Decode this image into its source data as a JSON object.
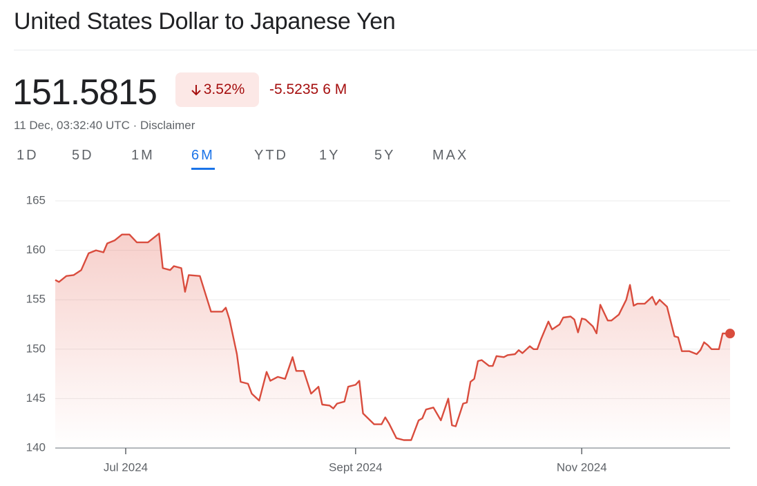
{
  "header": {
    "title": "United States Dollar to Japanese Yen",
    "price": "151.5815",
    "change_percent": "3.52%",
    "change_value": "-5.5235",
    "period": "6 M",
    "timestamp": "11 Dec, 03:32:40 UTC",
    "separator": "·",
    "disclaimer": "Disclaimer"
  },
  "tabs": {
    "items": [
      "1D",
      "5D",
      "1M",
      "6M",
      "YTD",
      "1Y",
      "5Y",
      "MAX"
    ],
    "selected": 3
  },
  "chart_data": {
    "type": "line",
    "x": [
      0,
      1,
      3,
      5,
      7,
      9,
      11,
      13,
      14,
      16,
      18,
      20,
      22,
      25,
      28,
      29,
      31,
      32,
      34,
      35,
      36,
      39,
      41,
      42,
      45,
      46,
      47,
      49,
      50,
      52,
      53,
      55,
      57,
      58,
      60,
      62,
      64,
      65,
      67,
      69,
      71,
      72,
      74,
      75,
      76,
      78,
      79,
      81,
      82,
      83,
      86,
      88,
      89,
      90,
      92,
      94,
      96,
      98,
      99,
      100,
      102,
      104,
      106,
      107,
      108,
      110,
      111,
      112,
      113,
      114,
      115,
      117,
      118,
      119,
      121,
      122,
      124,
      125,
      126,
      128,
      129,
      130,
      131,
      133,
      134,
      136,
      137,
      139,
      140,
      141,
      142,
      143,
      145,
      146,
      147,
      149,
      150,
      152,
      154,
      155,
      156,
      157,
      159,
      161,
      162,
      163,
      165,
      167,
      168,
      169,
      171,
      173,
      174,
      175,
      176,
      177,
      179,
      180,
      182
    ],
    "series": [
      {
        "name": "USD/JPY",
        "color": "#d94c3d",
        "values": [
          157.0,
          156.8,
          157.4,
          157.5,
          158.0,
          159.7,
          160.0,
          159.8,
          160.7,
          161.0,
          161.6,
          161.6,
          160.8,
          160.8,
          161.7,
          158.2,
          158.0,
          158.4,
          158.2,
          155.8,
          157.5,
          157.4,
          155.0,
          153.8,
          153.8,
          154.2,
          153.0,
          149.5,
          146.7,
          146.5,
          145.5,
          144.8,
          147.7,
          146.8,
          147.2,
          147.0,
          149.2,
          147.8,
          147.8,
          145.5,
          146.2,
          144.4,
          144.3,
          144.0,
          144.5,
          144.7,
          146.2,
          146.4,
          146.8,
          143.5,
          142.4,
          142.4,
          143.1,
          142.5,
          141.0,
          140.8,
          140.8,
          142.8,
          143.0,
          143.9,
          144.1,
          142.8,
          145.0,
          142.3,
          142.2,
          144.5,
          144.6,
          146.7,
          147.0,
          148.8,
          148.9,
          148.3,
          148.3,
          149.3,
          149.2,
          149.4,
          149.5,
          149.9,
          149.6,
          150.3,
          150.0,
          150.0,
          151.0,
          152.8,
          152.0,
          152.5,
          153.2,
          153.3,
          153.0,
          151.7,
          153.1,
          153.0,
          152.3,
          151.6,
          154.5,
          152.9,
          152.9,
          153.5,
          155.0,
          156.5,
          154.4,
          154.6,
          154.6,
          155.3,
          154.5,
          155.0,
          154.3,
          151.3,
          151.2,
          149.8,
          149.8,
          149.5,
          149.9,
          150.7,
          150.4,
          150.0,
          150.0,
          151.6,
          151.5815
        ]
      }
    ],
    "xlim": [
      0,
      182
    ],
    "xticks": [
      {
        "value": 19,
        "label": "Jul 2024"
      },
      {
        "value": 81,
        "label": "Sept 2024"
      },
      {
        "value": 142,
        "label": "Nov 2024"
      }
    ],
    "ylim": [
      140,
      165
    ],
    "yticks": [
      140,
      145,
      150,
      155,
      160,
      165
    ],
    "grid": true
  }
}
